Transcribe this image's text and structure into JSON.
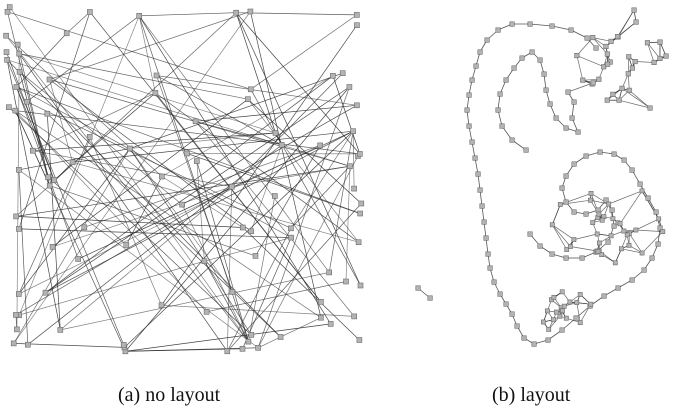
{
  "panels": [
    {
      "id": "a",
      "caption": "(a)  no layout"
    },
    {
      "id": "b",
      "caption": "(b)  layout"
    }
  ],
  "colors": {
    "node_fill": "#b3b3b3",
    "node_stroke": "#6b6b6b",
    "edge": "#2a2a2a"
  }
}
